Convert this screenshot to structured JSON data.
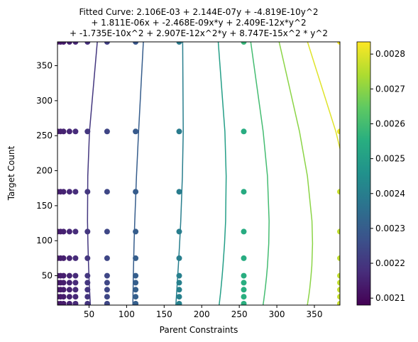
{
  "chart_data": {
    "type": "scatter",
    "title_lines": [
      "Fitted Curve: 2.106E-03 + 2.144E-07y + -4.819E-10y^2",
      "+ 1.811E-06x + -2.468E-09x*y + 2.409E-12x*y^2",
      "+ -1.735E-10x^2 + 2.907E-12x^2*y + 8.747E-15x^2 * y^2"
    ],
    "xlabel": "Parent Constraints",
    "ylabel": "Target Count",
    "xlim": [
      8,
      384
    ],
    "ylim": [
      8,
      384
    ],
    "xticks": [
      50,
      100,
      150,
      200,
      250,
      300,
      350
    ],
    "yticks": [
      50,
      100,
      150,
      200,
      250,
      300,
      350
    ],
    "x_values": [
      8,
      16,
      24,
      32,
      48,
      64,
      96,
      128,
      192,
      256,
      384
    ],
    "y_values": [
      8,
      16,
      24,
      32,
      48,
      64,
      96,
      128,
      192,
      256,
      384
    ],
    "points_x": [
      8,
      12,
      16,
      24,
      32,
      48,
      74,
      112,
      170,
      256,
      384
    ],
    "points_y": [
      10,
      20,
      30,
      40,
      50,
      75,
      113,
      170,
      256,
      384
    ],
    "coefficients": {
      "c": 0.002106,
      "y": 2.144e-07,
      "y2": -4.819e-10,
      "x": 1.811e-06,
      "xy": -2.468e-09,
      "xy2": 2.409e-12,
      "x2": -1.735e-10,
      "x2y": 2.907e-12,
      "x2y2": 8.747e-15
    },
    "contour_levels": [
      0.0021,
      0.0022,
      0.0023,
      0.0024,
      0.0025,
      0.0026,
      0.0027,
      0.0028
    ],
    "colorbar": {
      "min": 0.00208,
      "max": 0.002835,
      "ticks": [
        0.0021,
        0.0022,
        0.0023,
        0.0024,
        0.0025,
        0.0026,
        0.0027,
        0.0028
      ],
      "tick_labels": [
        "0.0021",
        "0.0022",
        "0.0023",
        "0.0024",
        "0.0025",
        "0.0026",
        "0.0027",
        "0.0028"
      ]
    },
    "colormap": "viridis"
  }
}
